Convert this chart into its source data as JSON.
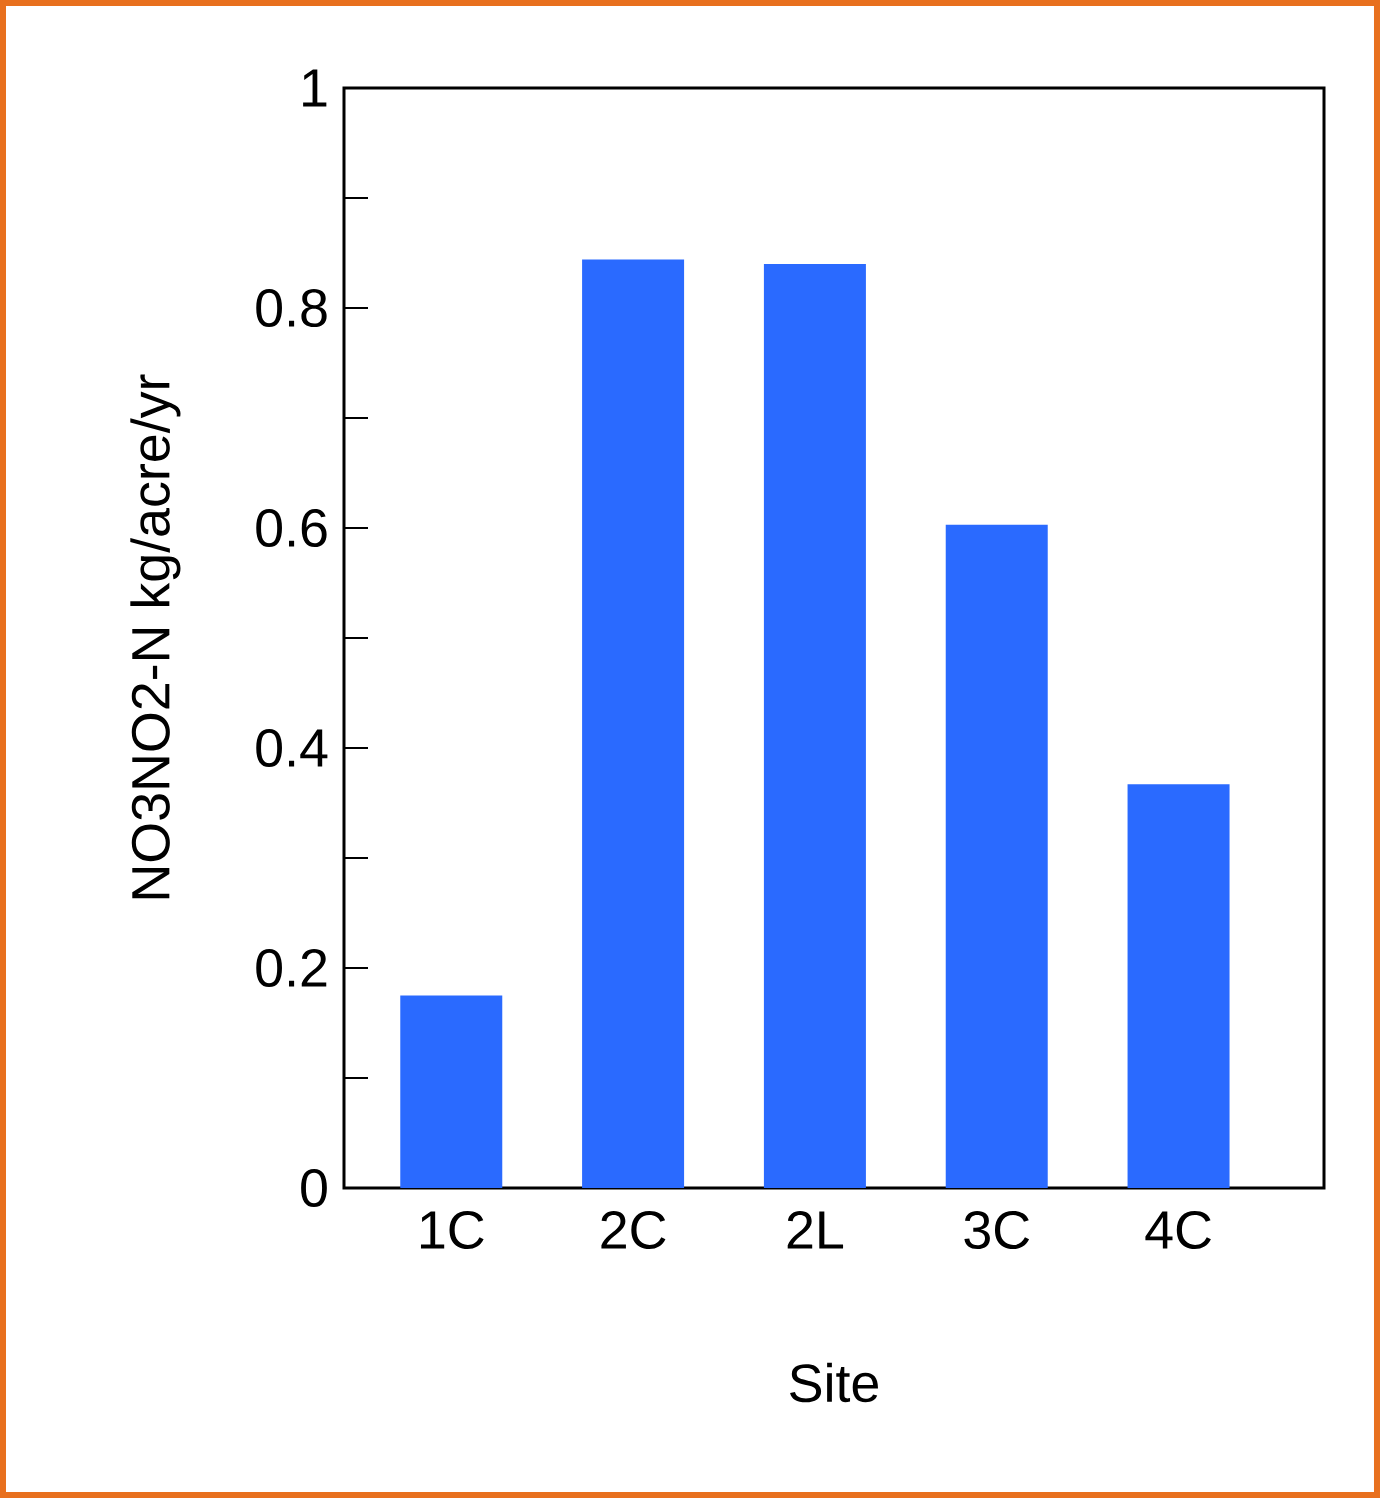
{
  "chart_data": {
    "type": "bar",
    "xlabel": "Site",
    "ylabel": "NO3NO2-N kg/acre/yr",
    "categories": [
      "1C",
      "2C",
      "2L",
      "3C",
      "4C"
    ],
    "values": [
      0.175,
      0.844,
      0.84,
      0.603,
      0.367
    ],
    "color": "#2a6aff",
    "ylim": [
      0,
      1
    ],
    "yticks": [
      0,
      {
        "value": 0.1,
        "label": null
      },
      0.2,
      {
        "value": 0.3,
        "label": null
      },
      0.4,
      {
        "value": 0.5,
        "label": null
      },
      0.6,
      {
        "value": 0.7,
        "label": null
      },
      0.8,
      {
        "value": 0.9,
        "label": null
      },
      1
    ],
    "grid": false
  }
}
